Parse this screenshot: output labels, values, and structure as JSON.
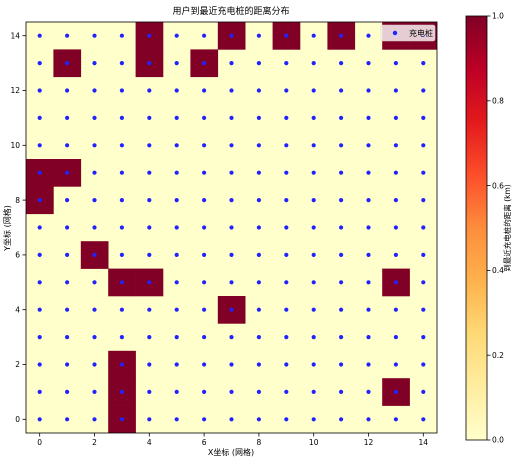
{
  "chart_data": {
    "type": "heatmap",
    "title": "用户到最近充电桩的距离分布",
    "xlabel": "X坐标 (网格)",
    "ylabel": "Y坐标 (网格)",
    "xlim": [
      -0.5,
      14.5
    ],
    "ylim": [
      -0.5,
      14.5
    ],
    "x_ticks": [
      0,
      2,
      4,
      6,
      8,
      10,
      12,
      14
    ],
    "y_ticks": [
      0,
      2,
      4,
      6,
      8,
      10,
      12,
      14
    ],
    "colorbar": {
      "label": "到最近充电桩的距离 (km)",
      "range": [
        0.0,
        1.0
      ],
      "ticks": [
        0.0,
        0.2,
        0.4,
        0.6,
        0.8,
        1.0
      ],
      "tick_labels": [
        "0.0",
        "0.2",
        "0.4",
        "0.6",
        "0.8",
        "1.0"
      ],
      "colors": [
        "#ffffcc",
        "#ffeda0",
        "#fed976",
        "#feb24c",
        "#fd8d3c",
        "#fc4e2a",
        "#e31a1c",
        "#bd0026",
        "#800026"
      ]
    },
    "background_value": 0.0,
    "high_cells": [
      [
        4,
        14
      ],
      [
        7,
        14
      ],
      [
        9,
        14
      ],
      [
        11,
        14
      ],
      [
        13,
        14
      ],
      [
        14,
        14
      ],
      [
        1,
        13
      ],
      [
        4,
        13
      ],
      [
        6,
        13
      ],
      [
        0,
        9
      ],
      [
        1,
        9
      ],
      [
        0,
        8
      ],
      [
        2,
        6
      ],
      [
        3,
        5
      ],
      [
        4,
        5
      ],
      [
        13,
        5
      ],
      [
        7,
        4
      ],
      [
        3,
        2
      ],
      [
        3,
        1
      ],
      [
        13,
        1
      ],
      [
        3,
        0
      ]
    ],
    "high_value": 1.0,
    "stations": {
      "name": "充电桩",
      "color": "#2222ff",
      "x_range": [
        0,
        14
      ],
      "y_range": [
        0,
        14
      ]
    },
    "legend": {
      "position": "top-right",
      "label": "充电桩"
    }
  }
}
